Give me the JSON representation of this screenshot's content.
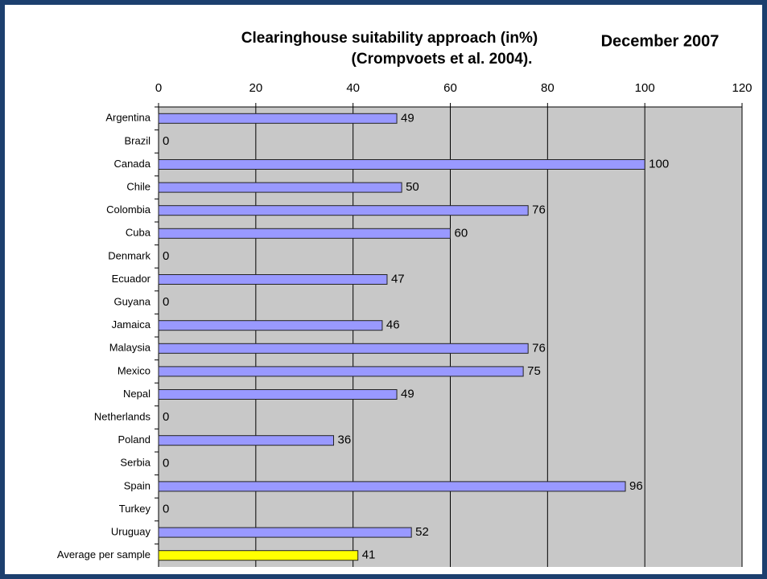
{
  "chart_data": {
    "type": "bar",
    "orientation": "horizontal",
    "title": "Clearinghouse suitability approach (in%)",
    "subtitle": "(Crompvoets et al. 2004).",
    "annotation": "December 2007",
    "categories": [
      "Argentina",
      "Brazil",
      "Canada",
      "Chile",
      "Colombia",
      "Cuba",
      "Denmark",
      "Ecuador",
      "Guyana",
      "Jamaica",
      "Malaysia",
      "Mexico",
      "Nepal",
      "Netherlands",
      "Poland",
      "Serbia",
      "Spain",
      "Turkey",
      "Uruguay",
      "Average per sample"
    ],
    "values": [
      49,
      0,
      100,
      50,
      76,
      60,
      0,
      47,
      0,
      46,
      76,
      75,
      49,
      0,
      36,
      0,
      96,
      0,
      52,
      41
    ],
    "colors": [
      "#9999ff",
      "#9999ff",
      "#9999ff",
      "#9999ff",
      "#9999ff",
      "#9999ff",
      "#9999ff",
      "#9999ff",
      "#9999ff",
      "#9999ff",
      "#9999ff",
      "#9999ff",
      "#9999ff",
      "#9999ff",
      "#9999ff",
      "#9999ff",
      "#9999ff",
      "#9999ff",
      "#9999ff",
      "#ffff00"
    ],
    "xlim": [
      0,
      120
    ],
    "xticks": [
      0,
      20,
      40,
      60,
      80,
      100,
      120
    ],
    "grid": true,
    "plot_background": "#c8c8c8"
  }
}
